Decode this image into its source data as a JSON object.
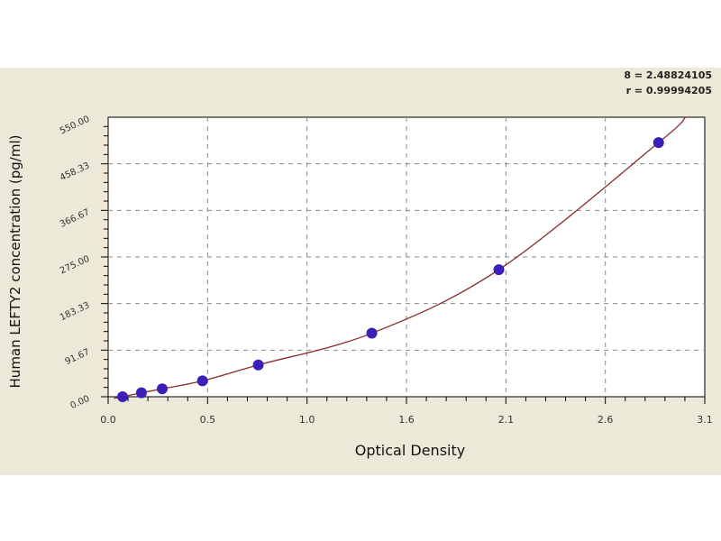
{
  "stats": {
    "line1": "8 = 2.48824105",
    "line2": "r = 0.99994205"
  },
  "chart_data": {
    "type": "scatter",
    "xlabel": "Optical Density",
    "ylabel": "Human LEFTY2 concentration (pg/ml)",
    "xlim": [
      0,
      3.1
    ],
    "ylim": [
      0,
      550
    ],
    "xticks": [
      "0.0",
      "0.5",
      "1.0",
      "1.6",
      "2.1",
      "2.6",
      "3.1"
    ],
    "yticks": [
      "0.00",
      "91.67",
      "183.33",
      "275.00",
      "366.67",
      "458.33",
      "550.00"
    ],
    "grid": true,
    "colors": {
      "points": "#3b1fb8",
      "curve": "#8b2a2a",
      "background": "#ece9d8"
    },
    "points": {
      "x": [
        0.075,
        0.173,
        0.281,
        0.49,
        0.78,
        1.37,
        2.03,
        2.86
      ],
      "y": [
        0,
        7.8,
        15.6,
        31.25,
        62.5,
        125,
        250,
        500
      ]
    }
  }
}
